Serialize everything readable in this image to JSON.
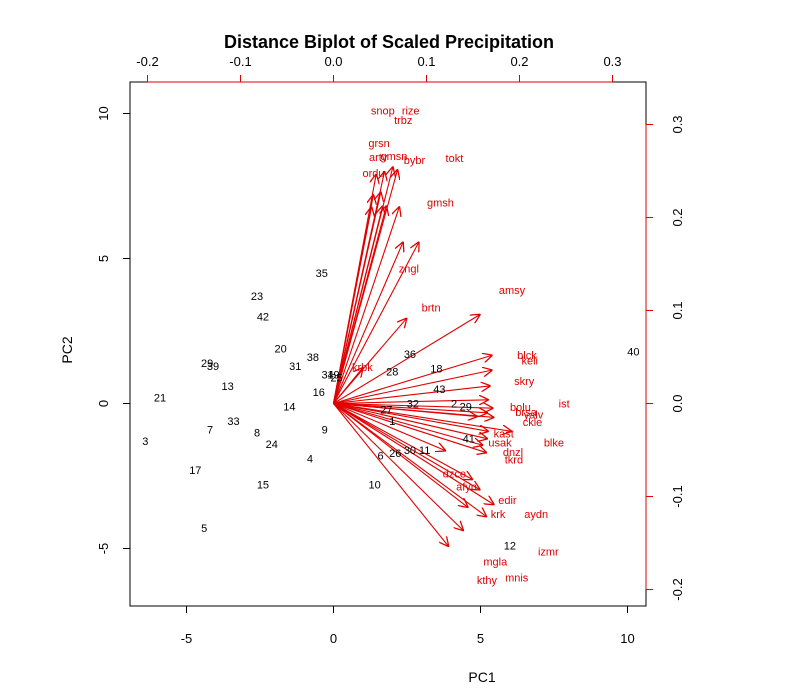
{
  "chart_data": {
    "type": "scatter",
    "subtype": "biplot",
    "title": "Distance Biplot of Scaled Precipitation",
    "xlabel": "PC1",
    "ylabel": "PC2",
    "xlim": [
      -6.9,
      10.8
    ],
    "ylim": [
      -7.0,
      10.8
    ],
    "x_ticks": [
      "-5",
      "0",
      "5",
      "10"
    ],
    "y_ticks": [
      "-5",
      "0",
      "5",
      "10"
    ],
    "top_ticks": [
      "-0.2",
      "-0.1",
      "0.0",
      "0.1",
      "0.2",
      "0.3"
    ],
    "right_ticks": [
      "-0.2",
      "-0.1",
      "0.0",
      "0.1",
      "0.2",
      "0.3"
    ],
    "top_axis_color": "#e00000",
    "right_axis_color": "#e00000",
    "point_color": "#000000",
    "arrow_color": "#e00000",
    "observations": [
      {
        "label": "3",
        "x": -6.4,
        "y": -1.3
      },
      {
        "label": "21",
        "x": -5.9,
        "y": 0.2
      },
      {
        "label": "17",
        "x": -4.7,
        "y": -2.3
      },
      {
        "label": "5",
        "x": -4.4,
        "y": -4.3
      },
      {
        "label": "7",
        "x": -4.2,
        "y": -0.9
      },
      {
        "label": "29",
        "x": -4.3,
        "y": 1.4
      },
      {
        "label": "39",
        "x": -4.1,
        "y": 1.3
      },
      {
        "label": "13",
        "x": -3.6,
        "y": 0.6
      },
      {
        "label": "33",
        "x": -3.4,
        "y": -0.6
      },
      {
        "label": "8",
        "x": -2.6,
        "y": -1.0
      },
      {
        "label": "15",
        "x": -2.4,
        "y": -2.8
      },
      {
        "label": "24",
        "x": -2.1,
        "y": -1.4
      },
      {
        "label": "23",
        "x": -2.6,
        "y": 3.7
      },
      {
        "label": "42",
        "x": -2.4,
        "y": 3.0
      },
      {
        "label": "20",
        "x": -1.8,
        "y": 1.9
      },
      {
        "label": "14",
        "x": -1.5,
        "y": -0.1
      },
      {
        "label": "31",
        "x": -1.3,
        "y": 1.3
      },
      {
        "label": "38",
        "x": -0.7,
        "y": 1.6
      },
      {
        "label": "4",
        "x": -0.8,
        "y": -1.9
      },
      {
        "label": "9",
        "x": -0.3,
        "y": -0.9
      },
      {
        "label": "16",
        "x": -0.5,
        "y": 0.4
      },
      {
        "label": "34",
        "x": -0.2,
        "y": 1.0
      },
      {
        "label": "19",
        "x": 0.0,
        "y": 1.0
      },
      {
        "label": "25",
        "x": 0.1,
        "y": 0.9
      },
      {
        "label": "35",
        "x": -0.4,
        "y": 4.5
      },
      {
        "label": "10",
        "x": 1.4,
        "y": -2.8
      },
      {
        "label": "6",
        "x": 1.6,
        "y": -1.8
      },
      {
        "label": "26",
        "x": 2.1,
        "y": -1.7
      },
      {
        "label": "28",
        "x": 2.0,
        "y": 1.1
      },
      {
        "label": "30",
        "x": 2.6,
        "y": -1.6
      },
      {
        "label": "11",
        "x": 3.1,
        "y": -1.6
      },
      {
        "label": "27",
        "x": 1.8,
        "y": -0.2
      },
      {
        "label": "1",
        "x": 2.0,
        "y": -0.6
      },
      {
        "label": "36",
        "x": 2.6,
        "y": 1.7
      },
      {
        "label": "32",
        "x": 2.7,
        "y": 0.0
      },
      {
        "label": "18",
        "x": 3.5,
        "y": 1.2
      },
      {
        "label": "43",
        "x": 3.6,
        "y": 0.5
      },
      {
        "label": "2",
        "x": 4.1,
        "y": 0.0
      },
      {
        "label": "29",
        "x": 4.5,
        "y": -0.1
      },
      {
        "label": "41",
        "x": 4.6,
        "y": -1.2
      },
      {
        "label": "12",
        "x": 6.0,
        "y": -4.9
      },
      {
        "label": "40",
        "x": 10.2,
        "y": 1.8
      }
    ],
    "variables": [
      {
        "label": "snop",
        "x": 0.053,
        "y": 0.315
      },
      {
        "label": "rize",
        "x": 0.083,
        "y": 0.315
      },
      {
        "label": "trbz",
        "x": 0.075,
        "y": 0.305
      },
      {
        "label": "grsn",
        "x": 0.049,
        "y": 0.28
      },
      {
        "label": "artv",
        "x": 0.048,
        "y": 0.265
      },
      {
        "label": "gmsn",
        "x": 0.065,
        "y": 0.266
      },
      {
        "label": "bybr",
        "x": 0.087,
        "y": 0.262
      },
      {
        "label": "tokt",
        "x": 0.13,
        "y": 0.264
      },
      {
        "label": "ordu",
        "x": 0.043,
        "y": 0.248
      },
      {
        "label": "gmsh",
        "x": 0.115,
        "y": 0.216
      },
      {
        "label": "zngl",
        "x": 0.081,
        "y": 0.145
      },
      {
        "label": "amsy",
        "x": 0.192,
        "y": 0.122
      },
      {
        "label": "brtn",
        "x": 0.105,
        "y": 0.103
      },
      {
        "label": "krbk",
        "x": 0.031,
        "y": 0.039
      },
      {
        "label": "blck",
        "x": 0.208,
        "y": 0.052
      },
      {
        "label": "keli",
        "x": 0.211,
        "y": 0.046
      },
      {
        "label": "skry",
        "x": 0.205,
        "y": 0.024
      },
      {
        "label": "ist",
        "x": 0.248,
        "y": 0.0
      },
      {
        "label": "bolu",
        "x": 0.201,
        "y": -0.004
      },
      {
        "label": "brsa",
        "x": 0.207,
        "y": -0.009
      },
      {
        "label": "yalv",
        "x": 0.215,
        "y": -0.012
      },
      {
        "label": "ckle",
        "x": 0.214,
        "y": -0.02
      },
      {
        "label": "kast",
        "x": 0.183,
        "y": -0.032
      },
      {
        "label": "usak",
        "x": 0.179,
        "y": -0.042
      },
      {
        "label": "blke",
        "x": 0.237,
        "y": -0.042
      },
      {
        "label": "dnzl",
        "x": 0.193,
        "y": -0.052
      },
      {
        "label": "tkrd",
        "x": 0.194,
        "y": -0.06
      },
      {
        "label": "dzce",
        "x": 0.13,
        "y": -0.075
      },
      {
        "label": "afyn",
        "x": 0.143,
        "y": -0.089
      },
      {
        "label": "edir",
        "x": 0.187,
        "y": -0.104
      },
      {
        "label": "krk",
        "x": 0.177,
        "y": -0.119
      },
      {
        "label": "aydn",
        "x": 0.218,
        "y": -0.119
      },
      {
        "label": "izmr",
        "x": 0.231,
        "y": -0.159
      },
      {
        "label": "mgla",
        "x": 0.174,
        "y": -0.17
      },
      {
        "label": "mnis",
        "x": 0.197,
        "y": -0.187
      },
      {
        "label": "kthy",
        "x": 0.165,
        "y": -0.19
      }
    ],
    "arrow_tips": [
      [
        0.043,
        0.225
      ],
      [
        0.051,
        0.228
      ],
      [
        0.053,
        0.213
      ],
      [
        0.057,
        0.213
      ],
      [
        0.041,
        0.212
      ],
      [
        0.071,
        0.212
      ],
      [
        0.092,
        0.174
      ],
      [
        0.075,
        0.174
      ],
      [
        0.064,
        0.255
      ],
      [
        0.055,
        0.25
      ],
      [
        0.069,
        0.252
      ],
      [
        0.046,
        0.247
      ],
      [
        0.079,
        0.092
      ],
      [
        0.158,
        0.096
      ],
      [
        0.032,
        0.039
      ],
      [
        0.171,
        0.052
      ],
      [
        0.171,
        0.036
      ],
      [
        0.169,
        0.019
      ],
      [
        0.167,
        0.004
      ],
      [
        0.172,
        -0.005
      ],
      [
        0.166,
        -0.01
      ],
      [
        0.173,
        -0.015
      ],
      [
        0.155,
        -0.014
      ],
      [
        0.192,
        -0.03
      ],
      [
        0.166,
        -0.038
      ],
      [
        0.161,
        -0.045
      ],
      [
        0.165,
        -0.053
      ],
      [
        0.121,
        -0.051
      ],
      [
        0.15,
        -0.082
      ],
      [
        0.158,
        -0.093
      ],
      [
        0.173,
        -0.109
      ],
      [
        0.145,
        -0.112
      ],
      [
        0.124,
        -0.154
      ],
      [
        0.14,
        -0.137
      ],
      [
        0.165,
        -0.122
      ],
      [
        0.167,
        -0.03
      ]
    ]
  }
}
